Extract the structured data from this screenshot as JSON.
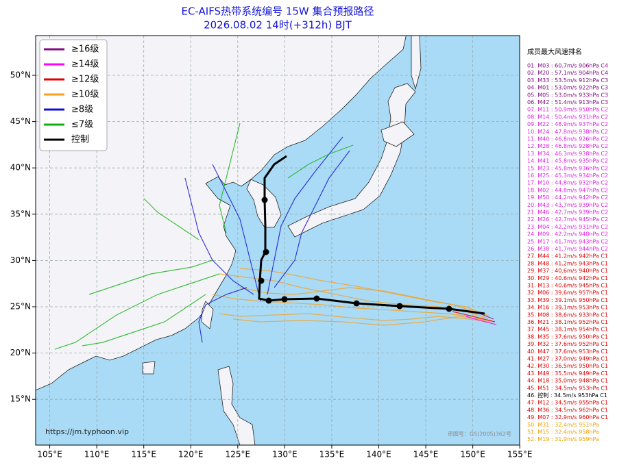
{
  "title": "EC-AIFS热带系统编号 15W 集合预报路径",
  "subtitle": "2026.08.02 14时(+312h) BJT",
  "legend": [
    {
      "label": "≥16级",
      "color": "#800a80"
    },
    {
      "label": "≥14级",
      "color": "#ff00ff"
    },
    {
      "label": "≥12级",
      "color": "#e00000"
    },
    {
      "label": "≥10级",
      "color": "#f5a020"
    },
    {
      "label": "≥8级",
      "color": "#1010d0"
    },
    {
      "label": "≤7级",
      "color": "#10b010"
    },
    {
      "label": "控制",
      "color": "#000000"
    }
  ],
  "lat_labels": [
    "50°N",
    "45°N",
    "40°N",
    "35°N",
    "30°N",
    "25°N",
    "20°N",
    "15°N"
  ],
  "lon_labels": [
    "105°E",
    "110°E",
    "115°E",
    "120°E",
    "125°E",
    "130°E",
    "135°E",
    "140°E",
    "145°E",
    "150°E",
    "155°E"
  ],
  "source": "https://jm.typhoon.vip",
  "approval": "审图号：GS(2005)362号",
  "ranking": {
    "title": "成员最大风速排名",
    "rows": [
      {
        "text": "01. M03 : 60.7m/s 906hPa C4",
        "color": "#800a80"
      },
      {
        "text": "02. M20 : 57.1m/s 904hPa C4",
        "color": "#800a80"
      },
      {
        "text": "03. M33 : 53.5m/s 912hPa C3",
        "color": "#800a80"
      },
      {
        "text": "04. M01 : 53.0m/s 922hPa C3",
        "color": "#800a80"
      },
      {
        "text": "05. M05 : 53.0m/s 933hPa C3",
        "color": "#800a80"
      },
      {
        "text": "06. M42 : 51.4m/s 913hPa C3",
        "color": "#800a80"
      },
      {
        "text": "07. M11 : 50.9m/s 950hPa C2",
        "color": "#e020e0"
      },
      {
        "text": "08. M14 : 50.4m/s 931hPa C2",
        "color": "#e020e0"
      },
      {
        "text": "09. M22 : 48.9m/s 937hPa C2",
        "color": "#e020e0"
      },
      {
        "text": "10. M24 : 47.8m/s 938hPa C2",
        "color": "#e020e0"
      },
      {
        "text": "11. M40 : 46.8m/s 926hPa C2",
        "color": "#e020e0"
      },
      {
        "text": "12. M28 : 46.8m/s 928hPa C2",
        "color": "#e020e0"
      },
      {
        "text": "13. M34 : 46.3m/s 938hPa C2",
        "color": "#e020e0"
      },
      {
        "text": "14. M41 : 45.8m/s 935hPa C2",
        "color": "#e020e0"
      },
      {
        "text": "15. M23 : 45.8m/s 936hPa C2",
        "color": "#e020e0"
      },
      {
        "text": "16. M25 : 45.3m/s 934hPa C2",
        "color": "#e020e0"
      },
      {
        "text": "17. M10 : 44.8m/s 932hPa C2",
        "color": "#e020e0"
      },
      {
        "text": "18. M02 : 44.8m/s 947hPa C2",
        "color": "#e020e0"
      },
      {
        "text": "19. M50 : 44.2m/s 942hPa C2",
        "color": "#e020e0"
      },
      {
        "text": "20. M43 : 43.7m/s 939hPa C2",
        "color": "#e020e0"
      },
      {
        "text": "21. M46 : 42.7m/s 939hPa C2",
        "color": "#e020e0"
      },
      {
        "text": "22. M26 : 42.7m/s 945hPa C2",
        "color": "#e020e0"
      },
      {
        "text": "23. M04 : 42.2m/s 931hPa C2",
        "color": "#e020e0"
      },
      {
        "text": "24. M09 : 42.2m/s 948hPa C2",
        "color": "#e020e0"
      },
      {
        "text": "25. M17 : 41.7m/s 943hPa C2",
        "color": "#e020e0"
      },
      {
        "text": "26. M38 : 41.7m/s 944hPa C2",
        "color": "#e020e0"
      },
      {
        "text": "27. M44 : 41.2m/s 942hPa C1",
        "color": "#e00000"
      },
      {
        "text": "28. M48 : 41.2m/s 943hPa C1",
        "color": "#e00000"
      },
      {
        "text": "29. M37 : 40.6m/s 940hPa C1",
        "color": "#e00000"
      },
      {
        "text": "30. M29 : 40.6m/s 942hPa C1",
        "color": "#e00000"
      },
      {
        "text": "31. M13 : 40.6m/s 945hPa C1",
        "color": "#e00000"
      },
      {
        "text": "32. M06 : 39.6m/s 957hPa C1",
        "color": "#e00000"
      },
      {
        "text": "33. M39 : 39.1m/s 950hPa C1",
        "color": "#e00000"
      },
      {
        "text": "34. M16 : 39.1m/s 953hPa C1",
        "color": "#e00000"
      },
      {
        "text": "35. M08 : 38.6m/s 933hPa C1",
        "color": "#e00000"
      },
      {
        "text": "36. M21 : 38.1m/s 952hPa C1",
        "color": "#e00000"
      },
      {
        "text": "37. M45 : 38.1m/s 954hPa C1",
        "color": "#e00000"
      },
      {
        "text": "38. M35 : 37.6m/s 950hPa C1",
        "color": "#e00000"
      },
      {
        "text": "39. M32 : 37.6m/s 952hPa C1",
        "color": "#e00000"
      },
      {
        "text": "40. M47 : 37.6m/s 953hPa C1",
        "color": "#e00000"
      },
      {
        "text": "41. M27 : 37.0m/s 949hPa C1",
        "color": "#e00000"
      },
      {
        "text": "42. M30 : 36.5m/s 950hPa C1",
        "color": "#e00000"
      },
      {
        "text": "43. M49 : 35.5m/s 949hPa C1",
        "color": "#e00000"
      },
      {
        "text": "44. M18 : 35.0m/s 948hPa C1",
        "color": "#e00000"
      },
      {
        "text": "45. M51 : 34.5m/s 953hPa C1",
        "color": "#e00000"
      },
      {
        "text": "46. 控制 : 34.5m/s 953hPa C1",
        "color": "#000000"
      },
      {
        "text": "47. M12 : 34.5m/s 955hPa C1",
        "color": "#e00000"
      },
      {
        "text": "48. M36 : 34.5m/s 962hPa C1",
        "color": "#e00000"
      },
      {
        "text": "49. M07 : 32.9m/s 960hPa C1",
        "color": "#e00000"
      },
      {
        "text": "50. M31 : 32.4m/s 951hPa",
        "color": "#f0a000"
      },
      {
        "text": "51. M15 : 32.4m/s 958hPa",
        "color": "#f0a000"
      },
      {
        "text": "52. M19 : 31.9m/s 959hPa",
        "color": "#f0a000"
      }
    ]
  }
}
